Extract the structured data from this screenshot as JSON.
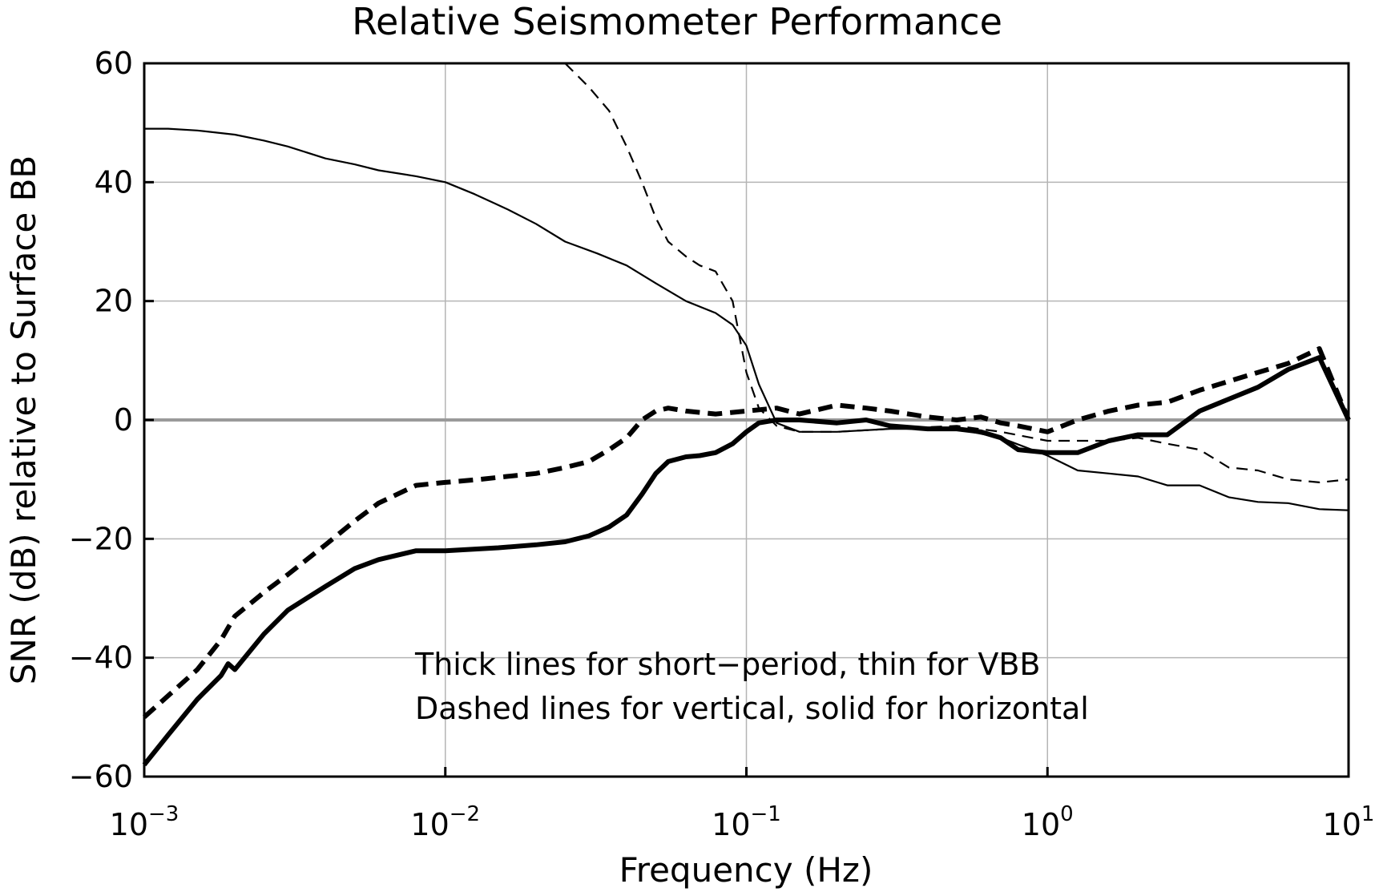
{
  "chart_data": {
    "type": "line",
    "title": "Relative Seismometer Performance",
    "xlabel": "Frequency (Hz)",
    "ylabel": "SNR (dB) relative to Surface BB",
    "x_scale": "log",
    "xlim": [
      0.001,
      10
    ],
    "ylim": [
      -60,
      60
    ],
    "grid": true,
    "x_ticks": [
      {
        "base": "10",
        "exp": "−3",
        "value": 0.001
      },
      {
        "base": "10",
        "exp": "−2",
        "value": 0.01
      },
      {
        "base": "10",
        "exp": "−1",
        "value": 0.1
      },
      {
        "base": "10",
        "exp": "0",
        "value": 1
      },
      {
        "base": "10",
        "exp": "1",
        "value": 10
      }
    ],
    "y_ticks": [
      "−60",
      "−40",
      "−20",
      "0",
      "20",
      "40",
      "60"
    ],
    "annotations": [
      "Thick lines for short−period, thin for VBB",
      "Dashed lines for vertical, solid for horizontal"
    ],
    "series": [
      {
        "style": "thin-solid",
        "x": [
          0.001,
          0.0012,
          0.0015,
          0.002,
          0.0025,
          0.003,
          0.004,
          0.005,
          0.006,
          0.008,
          0.01,
          0.0125,
          0.016,
          0.02,
          0.025,
          0.032,
          0.04,
          0.05,
          0.063,
          0.079,
          0.09,
          0.1,
          0.11,
          0.126,
          0.15,
          0.2,
          0.3,
          0.5,
          0.7,
          1.0,
          1.26,
          1.6,
          2.0,
          2.5,
          3.2,
          4.0,
          5.0,
          6.3,
          8.0,
          10
        ],
        "y": [
          49,
          49,
          48.7,
          48,
          47,
          46,
          44,
          43,
          42,
          41,
          40,
          38,
          35.5,
          33,
          30,
          28,
          26,
          23,
          20,
          18,
          16,
          12.5,
          6,
          -0.5,
          -2,
          -2,
          -1.5,
          -1.5,
          -3,
          -6,
          -8.5,
          -9,
          -9.5,
          -11,
          -11,
          -13,
          -13.8,
          -14,
          -15,
          -15.2
        ]
      },
      {
        "style": "thin-dashed",
        "x": [
          0.025,
          0.03,
          0.035,
          0.04,
          0.045,
          0.05,
          0.055,
          0.063,
          0.07,
          0.079,
          0.09,
          0.1,
          0.11,
          0.126,
          0.15,
          0.2,
          0.3,
          0.5,
          0.7,
          1.0,
          1.26,
          1.6,
          2.0,
          2.5,
          3.2,
          4.0,
          5.0,
          6.3,
          8.0,
          10
        ],
        "y": [
          60,
          56,
          52,
          46,
          40,
          34,
          30,
          27.5,
          26,
          25,
          20,
          8,
          2,
          -1,
          -2,
          -2,
          -1.5,
          -1,
          -2,
          -3.5,
          -3.5,
          -3.5,
          -3,
          -4,
          -5,
          -8,
          -8.5,
          -10,
          -10.5,
          -10
        ]
      },
      {
        "style": "thick-solid",
        "x": [
          0.001,
          0.0012,
          0.0015,
          0.0018,
          0.0019,
          0.002,
          0.0025,
          0.003,
          0.004,
          0.005,
          0.006,
          0.008,
          0.01,
          0.015,
          0.02,
          0.025,
          0.03,
          0.035,
          0.04,
          0.045,
          0.05,
          0.055,
          0.063,
          0.07,
          0.079,
          0.09,
          0.1,
          0.11,
          0.126,
          0.15,
          0.2,
          0.25,
          0.3,
          0.4,
          0.5,
          0.6,
          0.7,
          0.8,
          1.0,
          1.26,
          1.6,
          2.0,
          2.5,
          3.2,
          4.0,
          5.0,
          6.3,
          8.0,
          10
        ],
        "y": [
          -58,
          -53,
          -47,
          -43,
          -41,
          -42,
          -36,
          -32,
          -28,
          -25,
          -23.5,
          -22,
          -22,
          -21.5,
          -21,
          -20.5,
          -19.5,
          -18,
          -16,
          -12.5,
          -9,
          -7,
          -6.2,
          -6,
          -5.5,
          -4,
          -2,
          -0.5,
          0,
          0,
          -0.5,
          0,
          -1,
          -1.5,
          -1.5,
          -2,
          -3,
          -5,
          -5.5,
          -5.5,
          -3.5,
          -2.5,
          -2.5,
          1.5,
          3.5,
          5.5,
          8.5,
          10.5,
          0
        ]
      },
      {
        "style": "thick-dashed",
        "x": [
          0.001,
          0.0015,
          0.0018,
          0.002,
          0.0025,
          0.003,
          0.004,
          0.005,
          0.006,
          0.008,
          0.01,
          0.013,
          0.016,
          0.02,
          0.025,
          0.03,
          0.035,
          0.04,
          0.045,
          0.05,
          0.055,
          0.063,
          0.079,
          0.1,
          0.126,
          0.15,
          0.2,
          0.25,
          0.3,
          0.4,
          0.5,
          0.6,
          0.7,
          0.8,
          1.0,
          1.26,
          1.6,
          2.0,
          2.5,
          3.2,
          4.0,
          5.0,
          6.3,
          8.0,
          10
        ],
        "y": [
          -50,
          -42,
          -37,
          -33,
          -29,
          -26,
          -21,
          -17,
          -14,
          -11,
          -10.5,
          -10,
          -9.5,
          -9,
          -8,
          -7,
          -5,
          -3,
          0,
          1.5,
          2,
          1.5,
          1,
          1.5,
          2,
          1,
          2.5,
          2,
          1.5,
          0.5,
          0,
          0.5,
          -0.5,
          -1,
          -2,
          0,
          1.5,
          2.5,
          3,
          5,
          6.5,
          8,
          9.5,
          12,
          0
        ]
      }
    ]
  }
}
